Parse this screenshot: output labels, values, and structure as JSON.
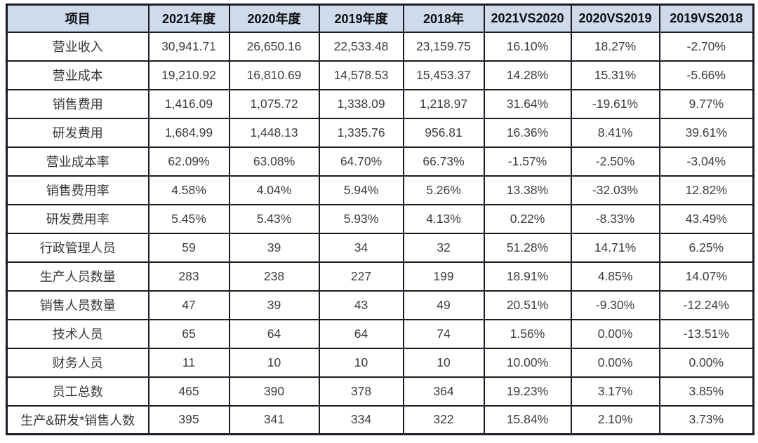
{
  "chart_data": {
    "type": "table",
    "title": "",
    "columns": [
      "项目",
      "2021年度",
      "2020年度",
      "2019年度",
      "2018年",
      "2021VS2020",
      "2020VS2019",
      "2019VS2018"
    ],
    "rows": [
      {
        "label": "营业收入",
        "values": [
          "30,941.71",
          "26,650.16",
          "22,533.48",
          "23,159.75",
          "16.10%",
          "18.27%",
          "-2.70%"
        ]
      },
      {
        "label": "营业成本",
        "values": [
          "19,210.92",
          "16,810.69",
          "14,578.53",
          "15,453.37",
          "14.28%",
          "15.31%",
          "-5.66%"
        ]
      },
      {
        "label": "销售费用",
        "values": [
          "1,416.09",
          "1,075.72",
          "1,338.09",
          "1,218.97",
          "31.64%",
          "-19.61%",
          "9.77%"
        ]
      },
      {
        "label": "研发费用",
        "values": [
          "1,684.99",
          "1,448.13",
          "1,335.76",
          "956.81",
          "16.36%",
          "8.41%",
          "39.61%"
        ]
      },
      {
        "label": "营业成本率",
        "values": [
          "62.09%",
          "63.08%",
          "64.70%",
          "66.73%",
          "-1.57%",
          "-2.50%",
          "-3.04%"
        ]
      },
      {
        "label": "销售费用率",
        "values": [
          "4.58%",
          "4.04%",
          "5.94%",
          "5.26%",
          "13.38%",
          "-32.03%",
          "12.82%"
        ]
      },
      {
        "label": "研发费用率",
        "values": [
          "5.45%",
          "5.43%",
          "5.93%",
          "4.13%",
          "0.22%",
          "-8.33%",
          "43.49%"
        ]
      },
      {
        "label": "行政管理人员",
        "values": [
          "59",
          "39",
          "34",
          "32",
          "51.28%",
          "14.71%",
          "6.25%"
        ]
      },
      {
        "label": "生产人员数量",
        "values": [
          "283",
          "238",
          "227",
          "199",
          "18.91%",
          "4.85%",
          "14.07%"
        ]
      },
      {
        "label": "销售人员数量",
        "values": [
          "47",
          "39",
          "43",
          "49",
          "20.51%",
          "-9.30%",
          "-12.24%"
        ]
      },
      {
        "label": "技术人员",
        "values": [
          "65",
          "64",
          "64",
          "74",
          "1.56%",
          "0.00%",
          "-13.51%"
        ]
      },
      {
        "label": "财务人员",
        "values": [
          "11",
          "10",
          "10",
          "10",
          "10.00%",
          "0.00%",
          "0.00%"
        ]
      },
      {
        "label": "员工总数",
        "values": [
          "465",
          "390",
          "378",
          "364",
          "19.23%",
          "3.17%",
          "3.85%"
        ]
      },
      {
        "label": "生产&研发*销售人数",
        "values": [
          "395",
          "341",
          "334",
          "322",
          "15.84%",
          "2.10%",
          "3.73%"
        ]
      }
    ],
    "layout": {
      "grid": true,
      "header_row": true,
      "first_column_is_label": true
    },
    "colors": {
      "header_background": "#cfdbea",
      "border": "#1b1b26",
      "header_text": "#0d0d12",
      "cell_text": "#3d3d3f",
      "page_background": "#ffffff"
    }
  }
}
